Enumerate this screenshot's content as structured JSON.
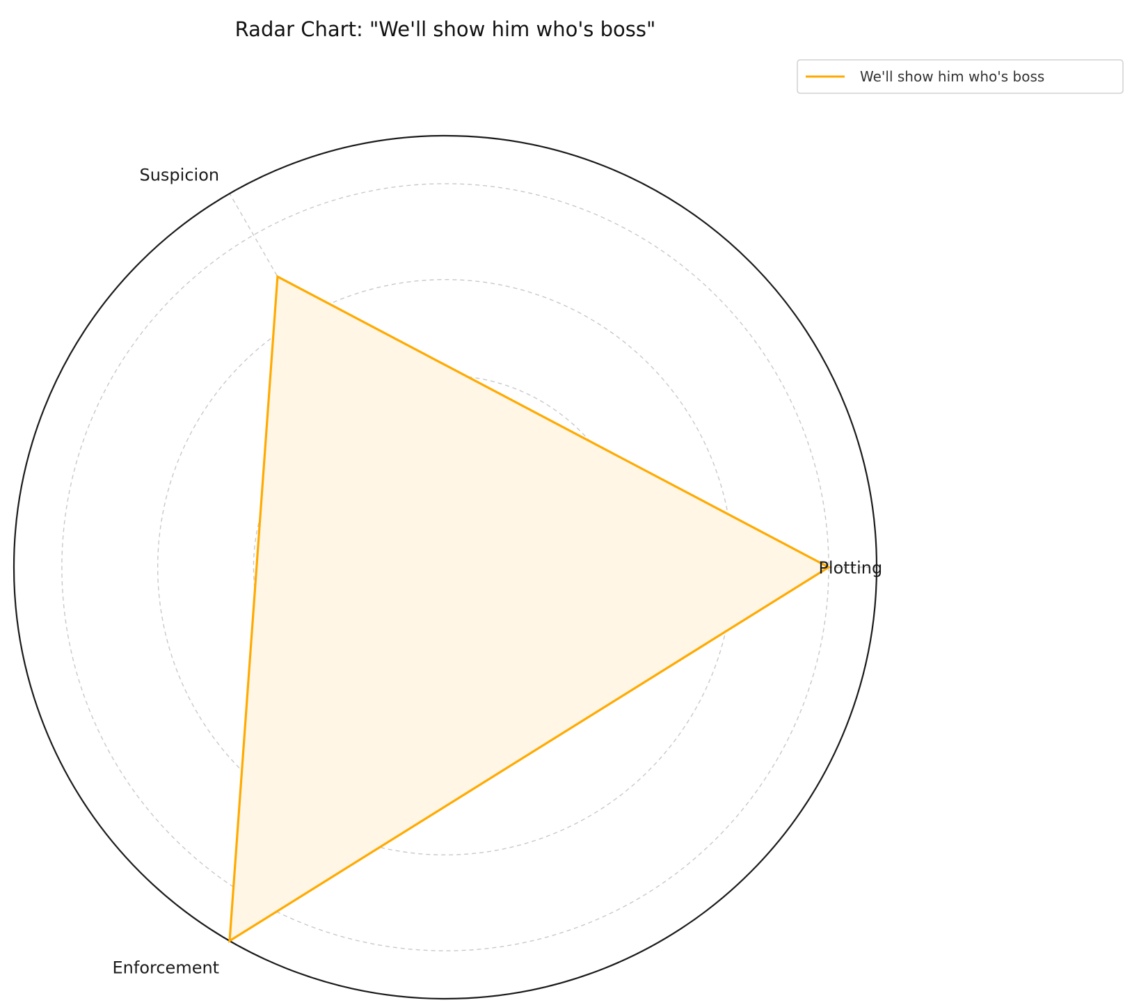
{
  "chart_data": {
    "type": "radar",
    "title": "Radar Chart: \"We'll show him who's boss\"",
    "categories": [
      "Plotting",
      "Suspicion",
      "Enforcement"
    ],
    "series": [
      {
        "name": "We'll show him who's boss",
        "values": [
          4,
          3.5,
          4.5
        ],
        "color": "#FFAA00"
      }
    ],
    "rlim": [
      0,
      4.5
    ],
    "r_gridlines": [
      1,
      2,
      3,
      4
    ],
    "grid": true,
    "legend_position": "top-right",
    "colors": {
      "series_line": "#FFAA00",
      "series_fill": "#FFF6E6",
      "grid": "#c8c8c8",
      "outer_circle": "#1a1a1a"
    }
  }
}
